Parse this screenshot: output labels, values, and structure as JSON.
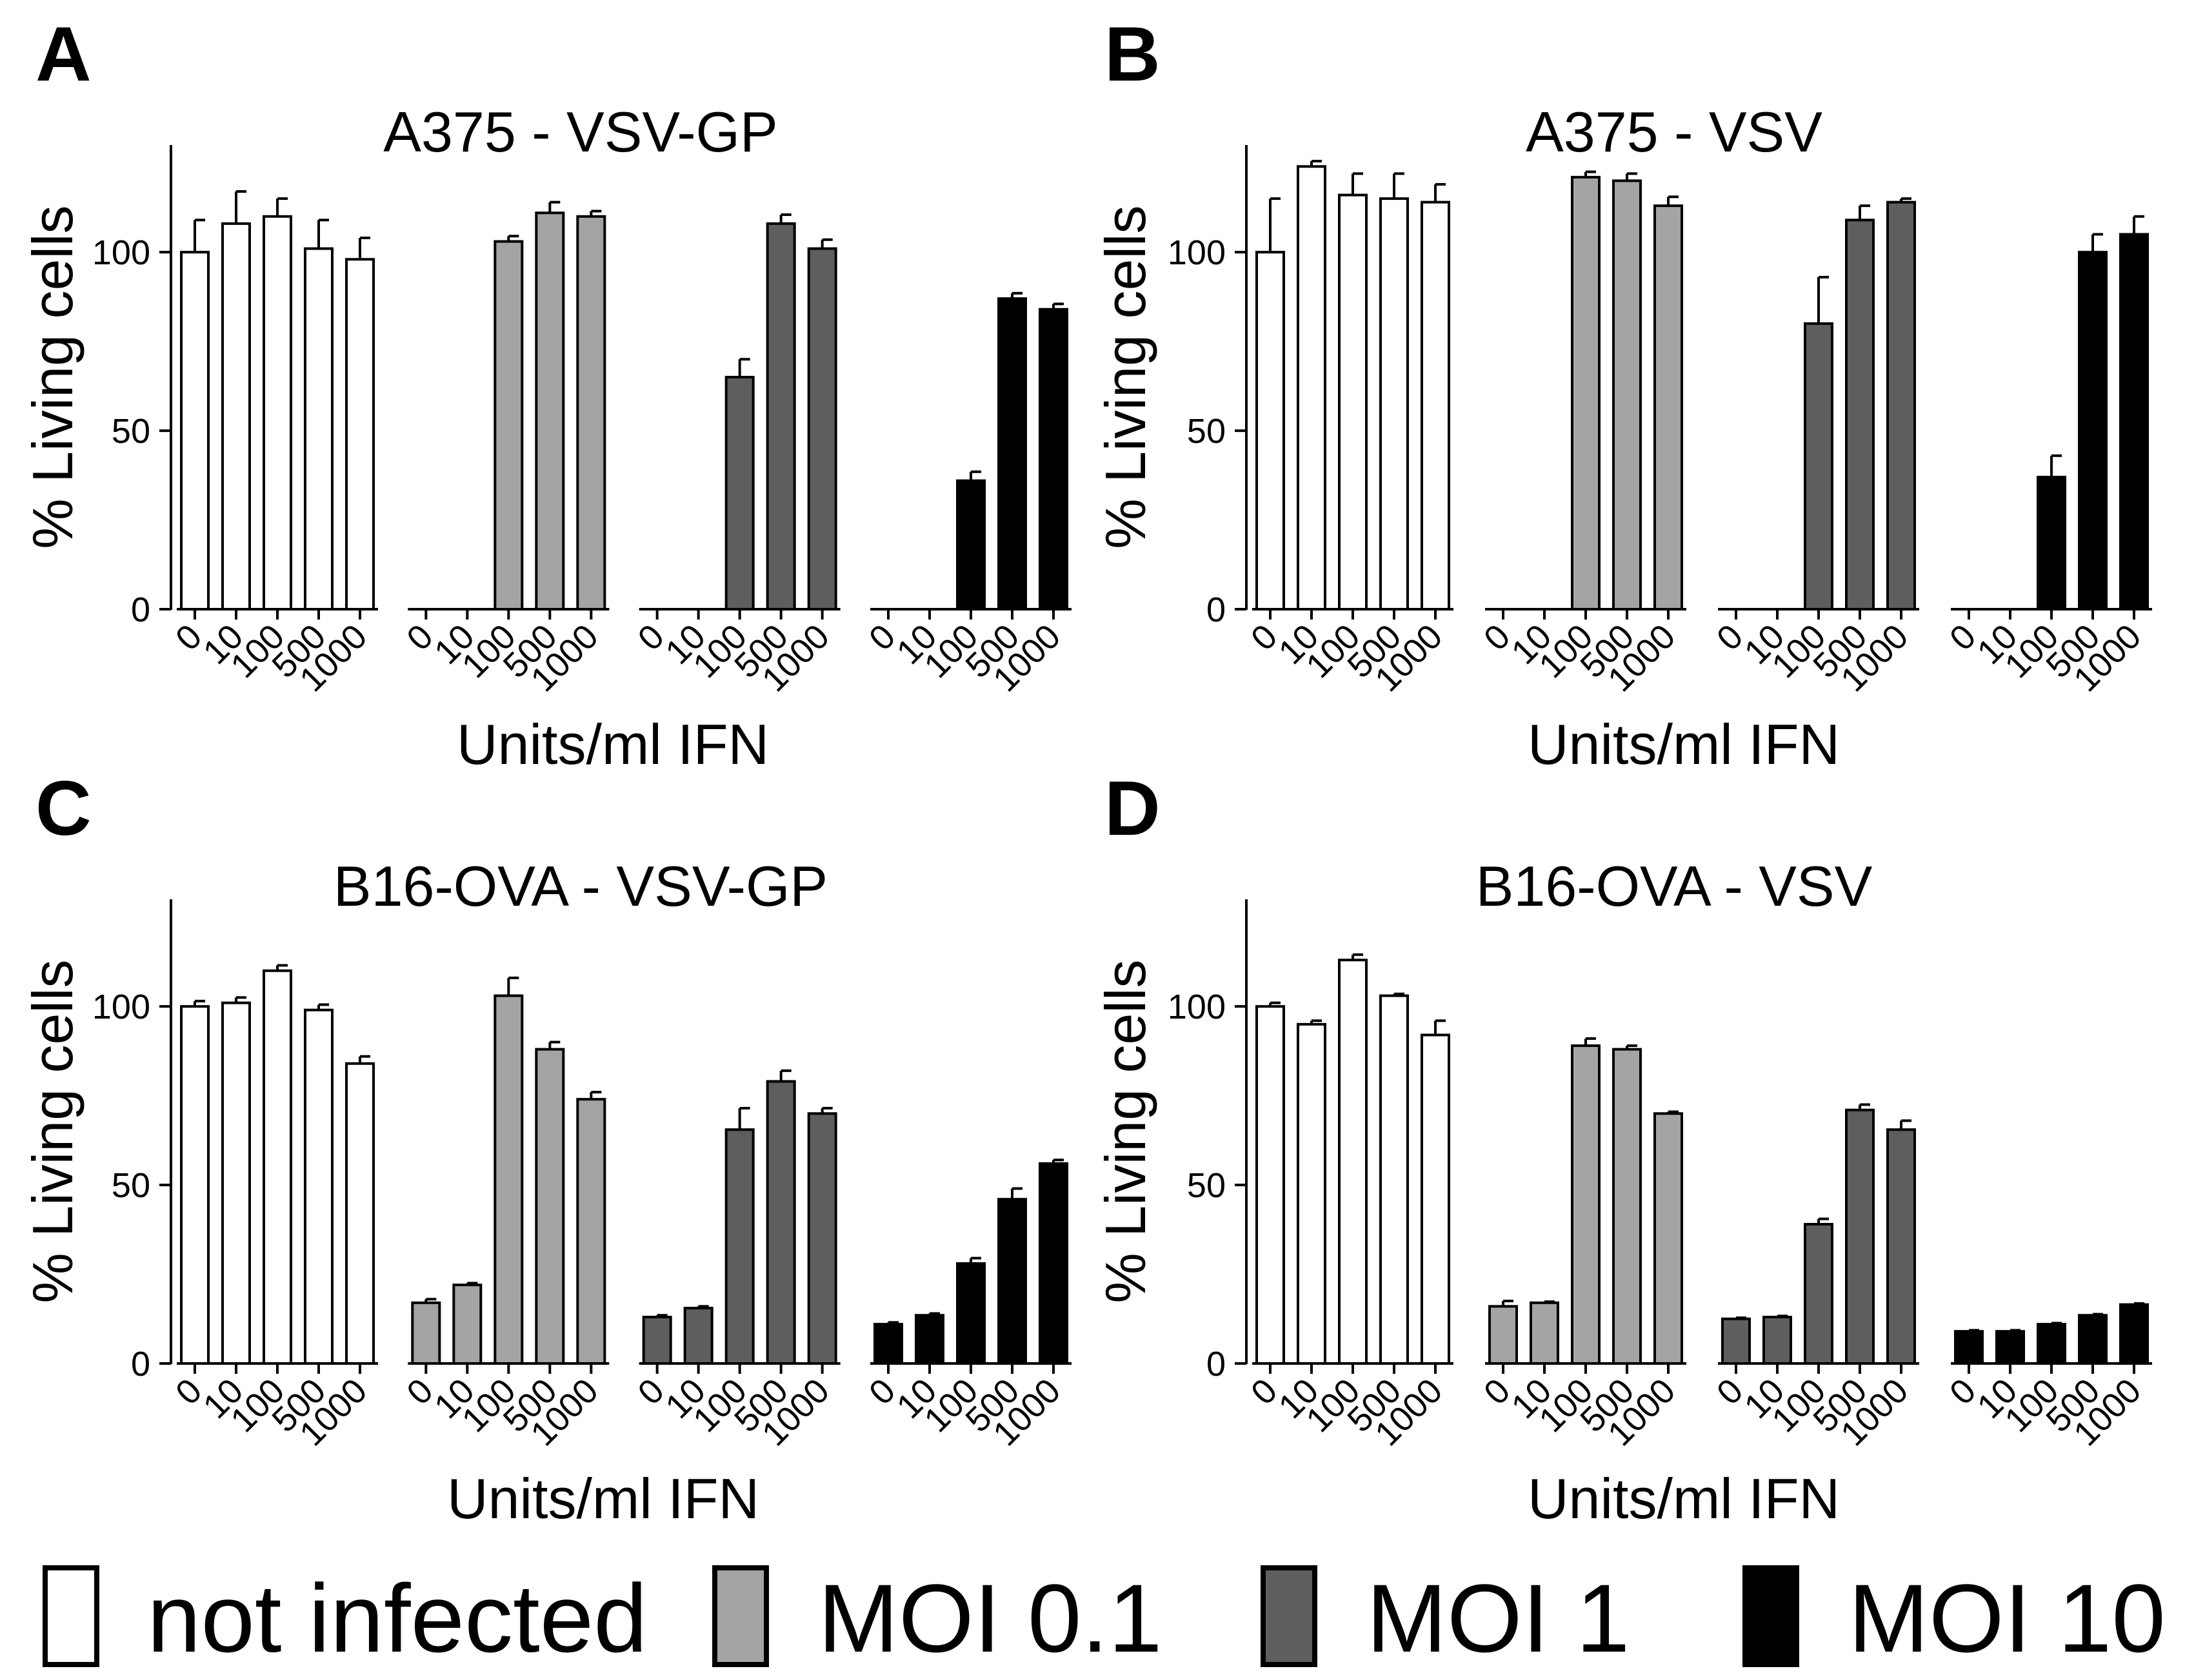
{
  "legend": [
    {
      "label": "not infected",
      "color": "#ffffff"
    },
    {
      "label": "MOI 0.1",
      "color": "#a4a4a4"
    },
    {
      "label": "MOI 1",
      "color": "#5e5e5e"
    },
    {
      "label": "MOI 10",
      "color": "#000000"
    }
  ],
  "chart_data": [
    {
      "type": "bar",
      "panel": "A",
      "title": "A375 - VSV-GP",
      "xlabel": "Units/ml IFN",
      "ylabel": "% Living cells",
      "ylim": [
        0,
        130
      ],
      "yticks": [
        0,
        50,
        100
      ],
      "categories": [
        "0",
        "10",
        "100",
        "500",
        "1000"
      ],
      "series": [
        {
          "name": "not infected",
          "values": [
            100,
            108,
            110,
            101,
            98
          ],
          "errors": [
            9,
            9,
            5,
            8,
            6
          ]
        },
        {
          "name": "MOI 0.1",
          "values": [
            0,
            0,
            103,
            111,
            110
          ],
          "errors": [
            0,
            0,
            1.5,
            3,
            1.5
          ]
        },
        {
          "name": "MOI 1",
          "values": [
            0,
            0,
            65,
            108,
            101
          ],
          "errors": [
            0,
            0,
            5,
            2.5,
            2.5
          ]
        },
        {
          "name": "MOI 10",
          "values": [
            0,
            0,
            36,
            87,
            84
          ],
          "errors": [
            0,
            0,
            2.5,
            1.5,
            1.5
          ]
        }
      ]
    },
    {
      "type": "bar",
      "panel": "B",
      "title": "A375 - VSV",
      "xlabel": "Units/ml IFN",
      "ylabel": "% Living cells",
      "ylim": [
        0,
        130
      ],
      "yticks": [
        0,
        50,
        100
      ],
      "categories": [
        "0",
        "10",
        "100",
        "500",
        "1000"
      ],
      "series": [
        {
          "name": "not infected",
          "values": [
            100,
            124,
            116,
            115,
            114
          ],
          "errors": [
            15,
            1.5,
            6,
            7,
            5
          ]
        },
        {
          "name": "MOI 0.1",
          "values": [
            0,
            0,
            121,
            120,
            113
          ],
          "errors": [
            0,
            0,
            1.5,
            2,
            2.5
          ]
        },
        {
          "name": "MOI 1",
          "values": [
            0,
            0,
            80,
            109,
            114
          ],
          "errors": [
            0,
            0,
            13,
            4,
            1
          ]
        },
        {
          "name": "MOI 10",
          "values": [
            0,
            0,
            37,
            100,
            105
          ],
          "errors": [
            0,
            0,
            6,
            5,
            5
          ]
        }
      ]
    },
    {
      "type": "bar",
      "panel": "C",
      "title": "B16-OVA - VSV-GP",
      "xlabel": "Units/ml IFN",
      "ylabel": "% Living cells",
      "ylim": [
        0,
        130
      ],
      "yticks": [
        0,
        50,
        100
      ],
      "categories": [
        "0",
        "10",
        "100",
        "500",
        "1000"
      ],
      "series": [
        {
          "name": "not infected",
          "values": [
            100,
            101,
            110,
            99,
            84
          ],
          "errors": [
            1.5,
            1.5,
            1.5,
            1.5,
            2
          ]
        },
        {
          "name": "MOI 0.1",
          "values": [
            17,
            22,
            103,
            88,
            74
          ],
          "errors": [
            1,
            0.5,
            5,
            2,
            2
          ]
        },
        {
          "name": "MOI 1",
          "values": [
            13,
            15.5,
            65.5,
            79,
            70
          ],
          "errors": [
            0.5,
            0.5,
            6,
            3,
            1.5
          ]
        },
        {
          "name": "MOI 10",
          "values": [
            11,
            13.5,
            28,
            46,
            56
          ],
          "errors": [
            0.5,
            0.5,
            1.5,
            3,
            1
          ]
        }
      ]
    },
    {
      "type": "bar",
      "panel": "D",
      "title": "B16-OVA - VSV",
      "xlabel": "Units/ml IFN",
      "ylabel": "% Living cells",
      "ylim": [
        0,
        130
      ],
      "yticks": [
        0,
        50,
        100
      ],
      "categories": [
        "0",
        "10",
        "100",
        "500",
        "1000"
      ],
      "series": [
        {
          "name": "not infected",
          "values": [
            100,
            95,
            113,
            103,
            92
          ],
          "errors": [
            1,
            1,
            1.5,
            0.5,
            4
          ]
        },
        {
          "name": "MOI 0.1",
          "values": [
            16,
            17,
            89,
            88,
            70
          ],
          "errors": [
            1.5,
            0.3,
            2,
            1,
            0.5
          ]
        },
        {
          "name": "MOI 1",
          "values": [
            12.5,
            13,
            39,
            71,
            65.5
          ],
          "errors": [
            0.3,
            0.3,
            1.5,
            1.5,
            2.5
          ]
        },
        {
          "name": "MOI 10",
          "values": [
            9,
            9,
            11,
            13.5,
            16.5
          ],
          "errors": [
            0.3,
            0.3,
            0.3,
            0.3,
            0.3
          ]
        }
      ]
    }
  ]
}
